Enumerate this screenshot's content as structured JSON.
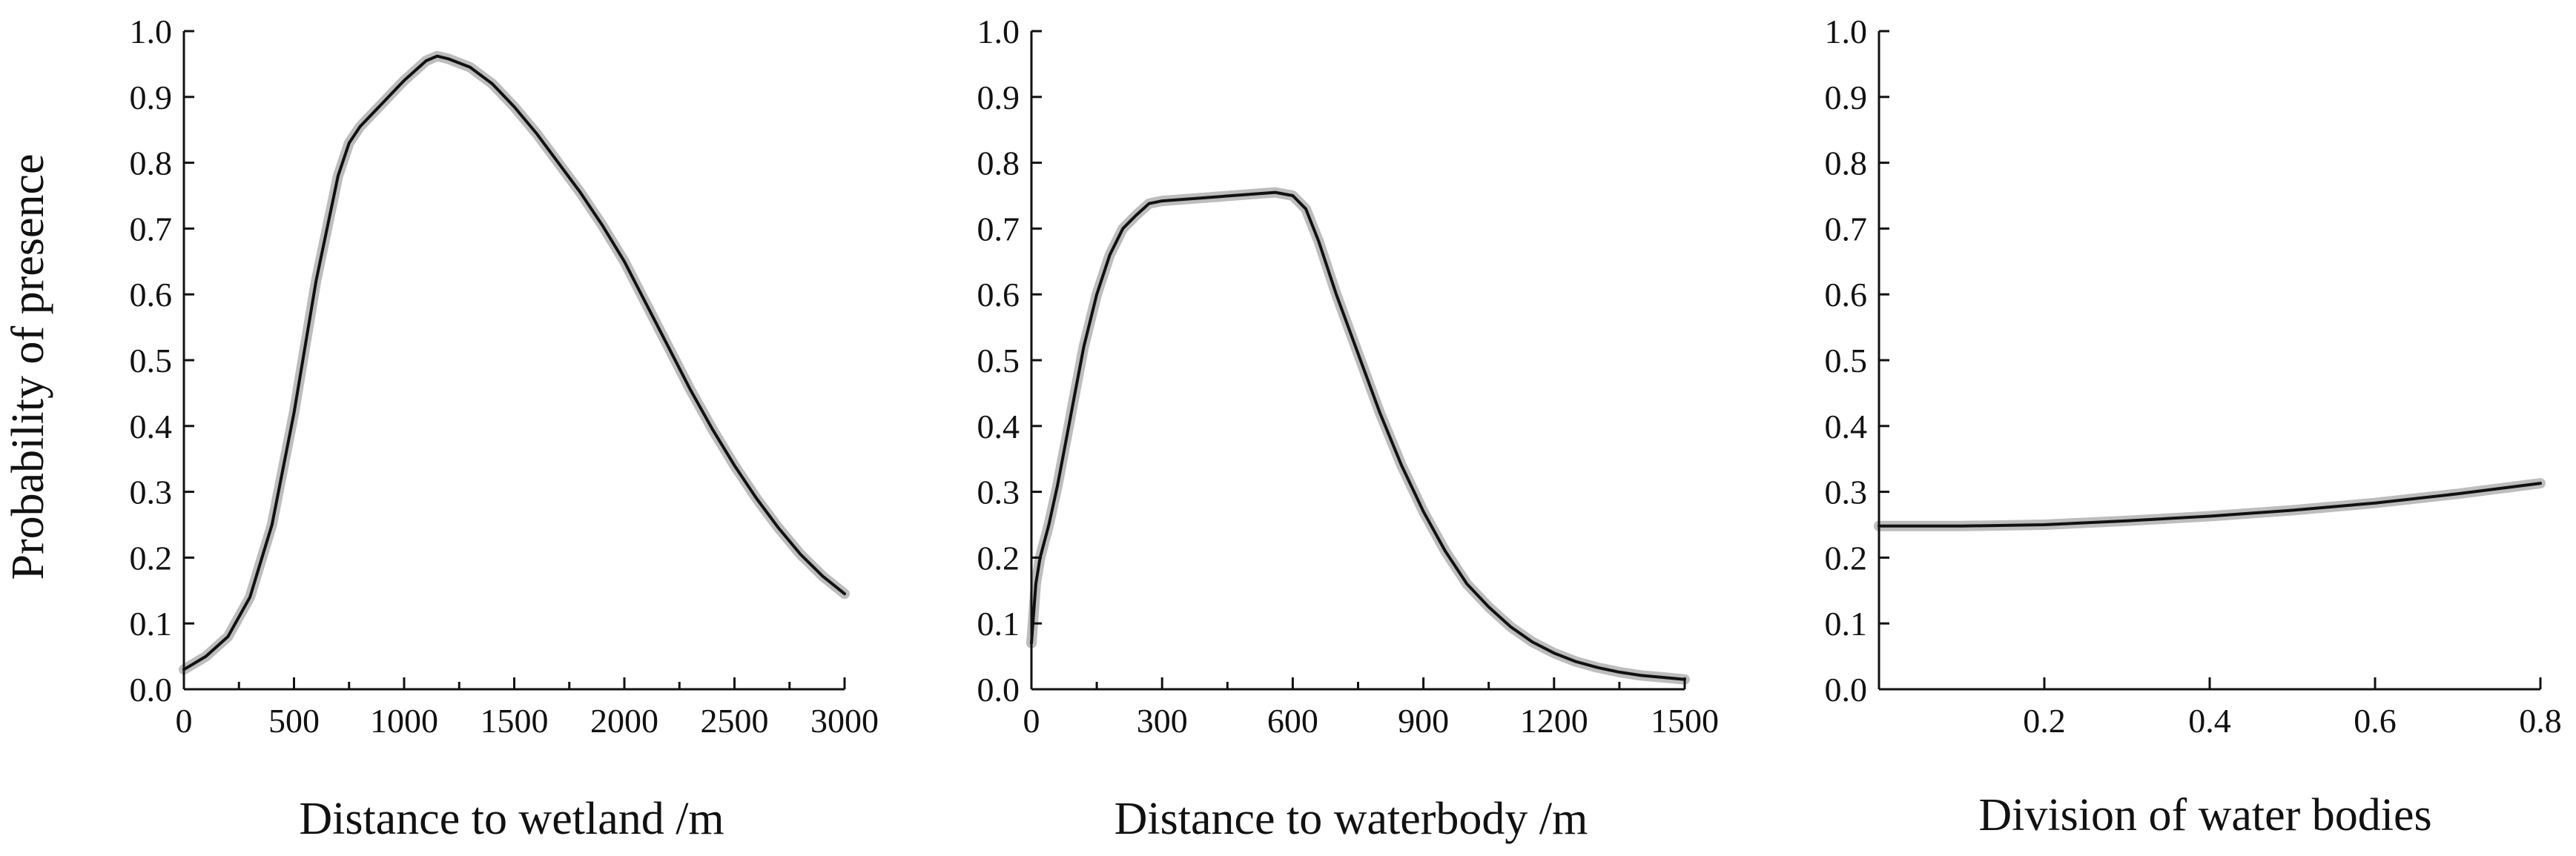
{
  "ylabel": "Probability of presence",
  "yticks": [
    "0.0",
    "0.1",
    "0.2",
    "0.3",
    "0.4",
    "0.5",
    "0.6",
    "0.7",
    "0.8",
    "0.9",
    "1.0"
  ],
  "colors": {
    "mean_line": "#111111",
    "ci_band": "#bdbdbd"
  },
  "chart_data": [
    {
      "type": "line",
      "xlabel": "Distance to wetland /m",
      "ylabel": "Probability of presence",
      "xlim": [
        0,
        3000
      ],
      "ylim": [
        0,
        1
      ],
      "xticks": [
        0,
        500,
        1000,
        1500,
        2000,
        2500,
        3000
      ],
      "xtick_labels": [
        "0",
        "500",
        "1000",
        "1500",
        "2000",
        "2500",
        "3000"
      ],
      "minor_xticks": [
        250,
        750,
        1250,
        1750,
        2250,
        2750
      ],
      "grid": false,
      "x": [
        0,
        100,
        200,
        300,
        400,
        500,
        600,
        700,
        750,
        800,
        900,
        1000,
        1100,
        1150,
        1200,
        1300,
        1400,
        1500,
        1600,
        1700,
        1800,
        1900,
        2000,
        2100,
        2200,
        2300,
        2400,
        2500,
        2600,
        2700,
        2800,
        2900,
        3000
      ],
      "series": [
        {
          "values": [
            0.03,
            0.05,
            0.08,
            0.14,
            0.25,
            0.42,
            0.62,
            0.78,
            0.83,
            0.855,
            0.89,
            0.925,
            0.955,
            0.962,
            0.958,
            0.945,
            0.92,
            0.885,
            0.845,
            0.8,
            0.755,
            0.705,
            0.65,
            0.585,
            0.52,
            0.455,
            0.395,
            0.34,
            0.29,
            0.245,
            0.205,
            0.172,
            0.145
          ]
        }
      ]
    },
    {
      "type": "line",
      "xlabel": "Distance to waterbody /m",
      "ylabel": "",
      "xlim": [
        0,
        1500
      ],
      "ylim": [
        0,
        1
      ],
      "xticks": [
        0,
        300,
        600,
        900,
        1200,
        1500
      ],
      "xtick_labels": [
        "0",
        "300",
        "600",
        "900",
        "1200",
        "1500"
      ],
      "minor_xticks": [
        150,
        450,
        750,
        1050,
        1350
      ],
      "grid": false,
      "x": [
        0,
        10,
        20,
        40,
        60,
        80,
        100,
        120,
        150,
        180,
        210,
        240,
        270,
        300,
        400,
        500,
        560,
        600,
        630,
        660,
        700,
        750,
        800,
        850,
        900,
        950,
        1000,
        1050,
        1100,
        1150,
        1200,
        1250,
        1300,
        1350,
        1400,
        1450,
        1500
      ],
      "series": [
        {
          "values": [
            0.07,
            0.16,
            0.2,
            0.25,
            0.31,
            0.38,
            0.45,
            0.52,
            0.6,
            0.66,
            0.7,
            0.72,
            0.738,
            0.742,
            0.747,
            0.752,
            0.755,
            0.75,
            0.73,
            0.68,
            0.6,
            0.51,
            0.42,
            0.34,
            0.27,
            0.21,
            0.16,
            0.125,
            0.095,
            0.072,
            0.055,
            0.042,
            0.033,
            0.026,
            0.021,
            0.018,
            0.015
          ]
        }
      ]
    },
    {
      "type": "line",
      "xlabel": "Division of water bodies",
      "ylabel": "",
      "xlim": [
        0,
        0.8
      ],
      "ylim": [
        0,
        1
      ],
      "xticks": [
        0.2,
        0.4,
        0.6,
        0.8
      ],
      "xtick_labels": [
        "0.2",
        "0.4",
        "0.6",
        "0.8"
      ],
      "minor_xticks": [],
      "grid": false,
      "x": [
        0,
        0.1,
        0.2,
        0.3,
        0.4,
        0.5,
        0.6,
        0.7,
        0.8
      ],
      "series": [
        {
          "values": [
            0.248,
            0.248,
            0.25,
            0.256,
            0.263,
            0.272,
            0.283,
            0.297,
            0.313
          ]
        }
      ]
    }
  ]
}
